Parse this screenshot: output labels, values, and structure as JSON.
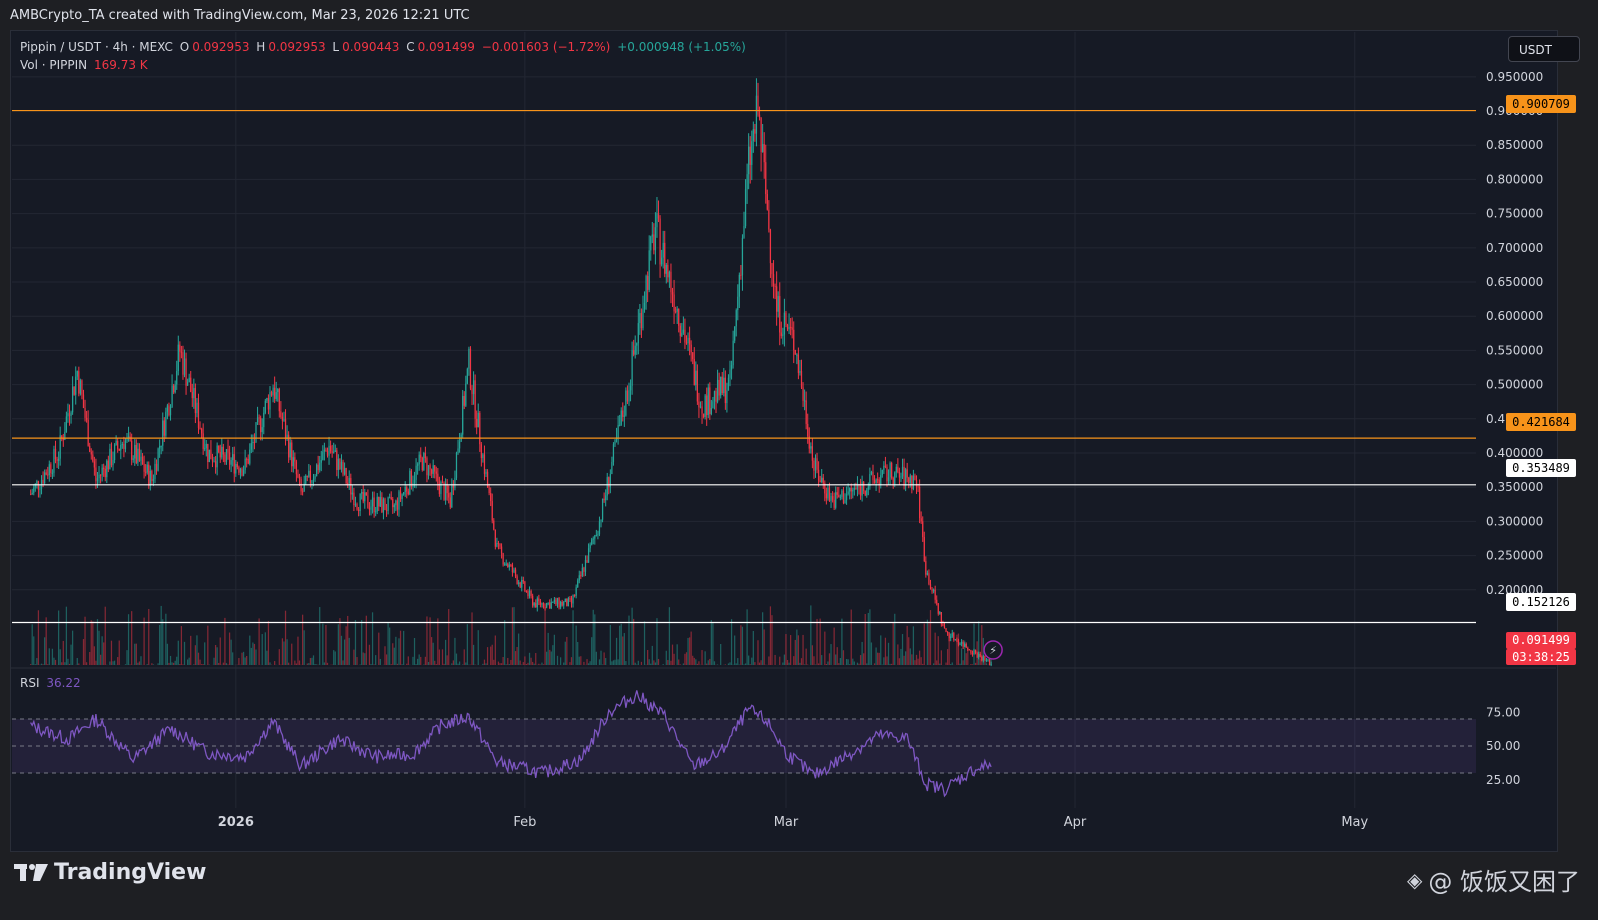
{
  "header": {
    "caption": "AMBCrypto_TA created with TradingView.com, Mar 23, 2026 12:21 UTC"
  },
  "legend": {
    "symbol": "Pippin / USDT · 4h · MEXC",
    "open_label": "O",
    "open": "0.092953",
    "high_label": "H",
    "high": "0.092953",
    "low_label": "L",
    "low": "0.090443",
    "close_label": "C",
    "close": "0.091499",
    "change": "−0.001603 (−1.72%)",
    "extra_change": "+0.000948 (+1.05%)",
    "volume_label": "Vol · PIPPIN",
    "volume": "169.73 K",
    "rsi_label": "RSI",
    "rsi_value": "36.22"
  },
  "toolbar": {
    "currency": "USDT"
  },
  "price_tags": {
    "resistance_high": "0.900709",
    "resistance_mid": "0.421684",
    "support_mid": "0.353489",
    "support_low": "0.152126",
    "last_price": "0.091499",
    "countdown": "03:38:25"
  },
  "footer": {
    "brand": "TradingView",
    "watermark": "@ 饭饭又困了"
  },
  "colors": {
    "bull": "#26a69a",
    "bear": "#f23645",
    "level_orange": "#f7931a",
    "level_white": "#ffffff",
    "rsi_line": "#7e57c2"
  },
  "chart_data": {
    "type": "candlestick",
    "symbol": "Pippin / USDT",
    "interval": "4h",
    "exchange": "MEXC",
    "y_axis_ticks": [
      "0.950000",
      "0.900000",
      "0.850000",
      "0.800000",
      "0.750000",
      "0.700000",
      "0.650000",
      "0.600000",
      "0.550000",
      "0.500000",
      "0.450000",
      "0.400000",
      "0.350000",
      "0.300000",
      "0.250000",
      "0.200000"
    ],
    "x_axis_labels": [
      "2026",
      "Feb",
      "Mar",
      "Apr",
      "May"
    ],
    "ylim": [
      0.09,
      0.96
    ],
    "price_path": [
      [
        "2025-12-10",
        0.34
      ],
      [
        "2025-12-13",
        0.4
      ],
      [
        "2025-12-15",
        0.52
      ],
      [
        "2025-12-17",
        0.36
      ],
      [
        "2025-12-20",
        0.42
      ],
      [
        "2025-12-23",
        0.36
      ],
      [
        "2025-12-26",
        0.55
      ],
      [
        "2025-12-29",
        0.4
      ],
      [
        "2026-01-02",
        0.38
      ],
      [
        "2026-01-05",
        0.5
      ],
      [
        "2026-01-08",
        0.34
      ],
      [
        "2026-01-11",
        0.41
      ],
      [
        "2026-01-14",
        0.33
      ],
      [
        "2026-01-18",
        0.32
      ],
      [
        "2026-01-21",
        0.39
      ],
      [
        "2026-01-24",
        0.33
      ],
      [
        "2026-01-26",
        0.53
      ],
      [
        "2026-01-29",
        0.26
      ],
      [
        "2026-02-02",
        0.18
      ],
      [
        "2026-02-06",
        0.18
      ],
      [
        "2026-02-09",
        0.3
      ],
      [
        "2026-02-12",
        0.49
      ],
      [
        "2026-02-15",
        0.73
      ],
      [
        "2026-02-18",
        0.58
      ],
      [
        "2026-02-20",
        0.47
      ],
      [
        "2026-02-23",
        0.5
      ],
      [
        "2026-02-25",
        0.82
      ],
      [
        "2026-02-26",
        0.9
      ],
      [
        "2026-02-28",
        0.61
      ],
      [
        "2026-03-02",
        0.56
      ],
      [
        "2026-03-04",
        0.38
      ],
      [
        "2026-03-06",
        0.33
      ],
      [
        "2026-03-09",
        0.35
      ],
      [
        "2026-03-12",
        0.37
      ],
      [
        "2026-03-15",
        0.36
      ],
      [
        "2026-03-16",
        0.23
      ],
      [
        "2026-03-18",
        0.14
      ],
      [
        "2026-03-20",
        0.12
      ],
      [
        "2026-03-23",
        0.091499
      ]
    ],
    "horizontal_levels": [
      {
        "value": 0.900709,
        "color": "orange"
      },
      {
        "value": 0.421684,
        "color": "orange"
      },
      {
        "value": 0.353489,
        "color": "white"
      },
      {
        "value": 0.152126,
        "color": "white"
      }
    ],
    "last_price": 0.091499,
    "rsi": {
      "value": 36.22,
      "ticks": [
        "75.00",
        "50.00",
        "25.00"
      ],
      "band": [
        30,
        70
      ],
      "path": [
        [
          "2025-12-10",
          65
        ],
        [
          "2025-12-14",
          55
        ],
        [
          "2025-12-17",
          70
        ],
        [
          "2025-12-21",
          40
        ],
        [
          "2025-12-25",
          63
        ],
        [
          "2025-12-29",
          45
        ],
        [
          "2026-01-02",
          42
        ],
        [
          "2026-01-05",
          68
        ],
        [
          "2026-01-08",
          35
        ],
        [
          "2026-01-12",
          55
        ],
        [
          "2026-01-16",
          42
        ],
        [
          "2026-01-20",
          44
        ],
        [
          "2026-01-23",
          65
        ],
        [
          "2026-01-26",
          72
        ],
        [
          "2026-01-29",
          38
        ],
        [
          "2026-02-03",
          30
        ],
        [
          "2026-02-07",
          40
        ],
        [
          "2026-02-10",
          75
        ],
        [
          "2026-02-13",
          88
        ],
        [
          "2026-02-16",
          72
        ],
        [
          "2026-02-19",
          35
        ],
        [
          "2026-02-22",
          45
        ],
        [
          "2026-02-25",
          77
        ],
        [
          "2026-02-27",
          68
        ],
        [
          "2026-03-01",
          45
        ],
        [
          "2026-03-04",
          28
        ],
        [
          "2026-03-08",
          45
        ],
        [
          "2026-03-11",
          58
        ],
        [
          "2026-03-14",
          56
        ],
        [
          "2026-03-16",
          22
        ],
        [
          "2026-03-18",
          18
        ],
        [
          "2026-03-21",
          32
        ],
        [
          "2026-03-23",
          36.22
        ]
      ]
    }
  }
}
